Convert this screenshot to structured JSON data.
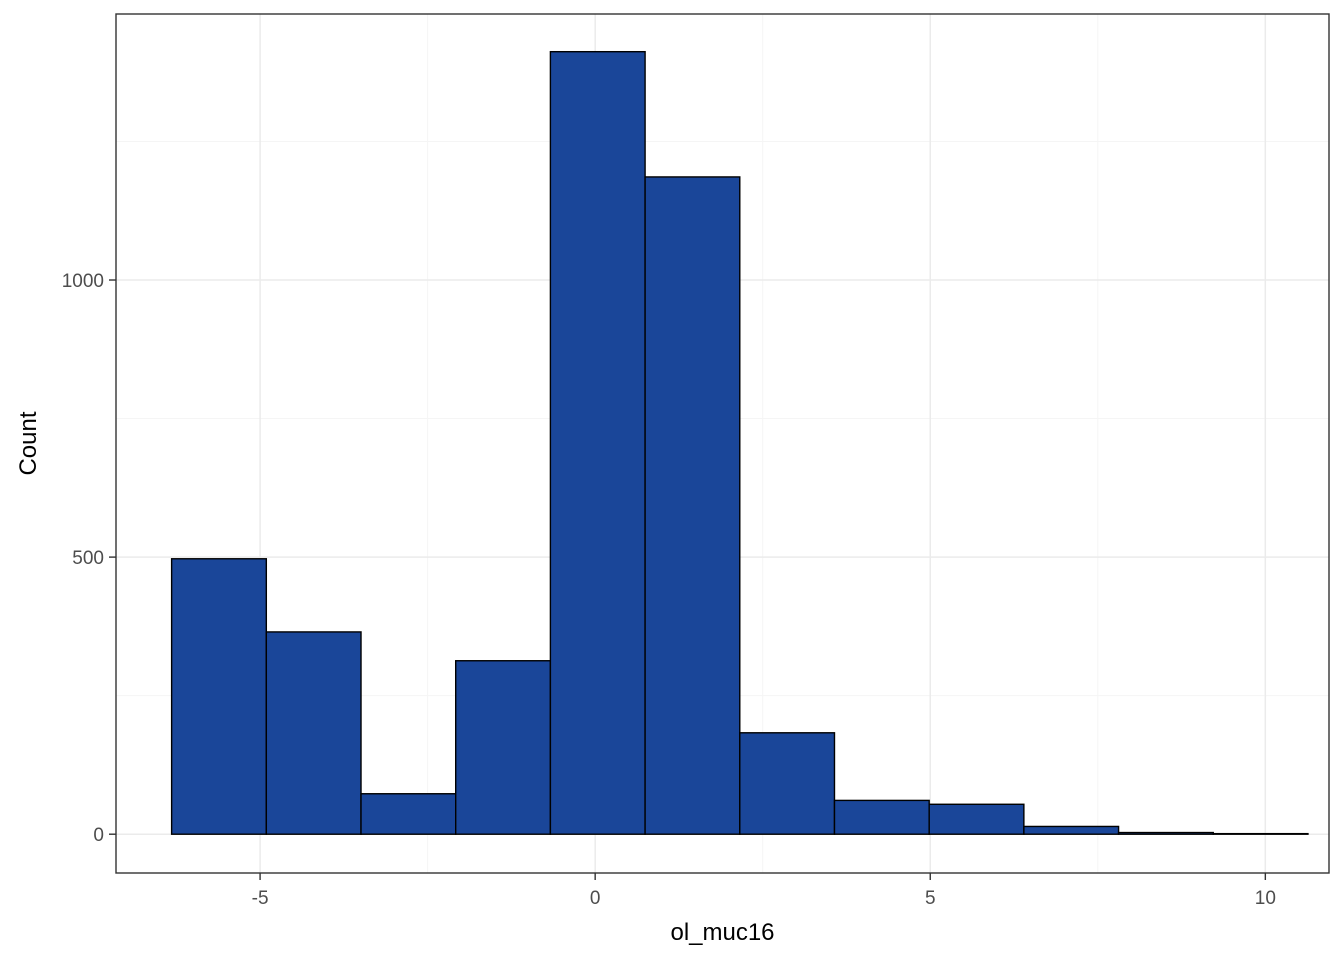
{
  "chart_data": {
    "type": "bar",
    "title": "",
    "xlabel": "ol_muc16",
    "ylabel": "Count",
    "xlim": [
      -7.15,
      10.95
    ],
    "ylim": [
      -70,
      1480
    ],
    "x_ticks": [
      -5,
      0,
      5,
      10
    ],
    "x_tick_labels": [
      "-5",
      "0",
      "5",
      "10"
    ],
    "y_ticks": [
      0,
      500,
      1000
    ],
    "y_tick_labels": [
      "0",
      "500",
      "1000"
    ],
    "x_minor_gridlines": [
      -2.5,
      2.5,
      7.5
    ],
    "y_minor_gridlines": [
      250,
      750,
      1250
    ],
    "grid": true,
    "legend": "none",
    "bin_width": 1.413,
    "bins": [
      {
        "x_start": -6.32,
        "x_end": -4.907,
        "count": 497
      },
      {
        "x_start": -4.907,
        "x_end": -3.494,
        "count": 365
      },
      {
        "x_start": -3.494,
        "x_end": -2.081,
        "count": 73
      },
      {
        "x_start": -2.081,
        "x_end": -0.668,
        "count": 313
      },
      {
        "x_start": -0.668,
        "x_end": 0.745,
        "count": 1412
      },
      {
        "x_start": 0.745,
        "x_end": 2.158,
        "count": 1186
      },
      {
        "x_start": 2.158,
        "x_end": 3.571,
        "count": 183
      },
      {
        "x_start": 3.571,
        "x_end": 4.984,
        "count": 61
      },
      {
        "x_start": 4.984,
        "x_end": 6.397,
        "count": 54
      },
      {
        "x_start": 6.397,
        "x_end": 7.81,
        "count": 14
      },
      {
        "x_start": 7.81,
        "x_end": 9.223,
        "count": 3
      },
      {
        "x_start": 9.223,
        "x_end": 10.636,
        "count": 1
      }
    ],
    "colors": {
      "bar_fill": "#1A4699",
      "bar_stroke": "#000000",
      "grid_major": "#EBEBEB",
      "grid_minor": "#F5F5F5",
      "panel_border": "#333333",
      "tick_label": "#4D4D4D",
      "axis_title": "#000000",
      "background": "#FFFFFF"
    }
  }
}
